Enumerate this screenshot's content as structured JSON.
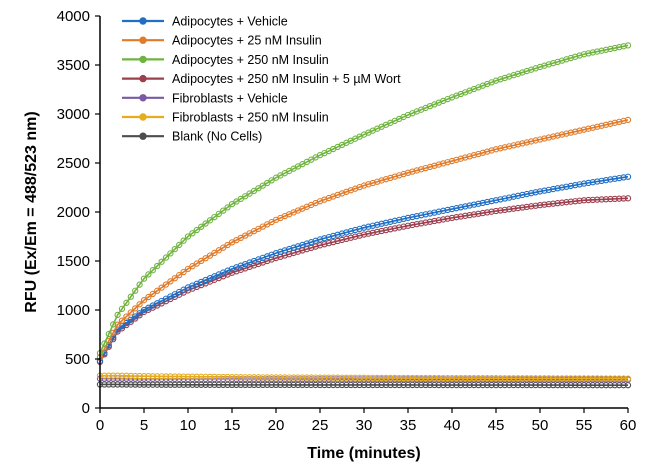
{
  "chart_data": {
    "type": "line",
    "title": "",
    "xlabel": "Time (minutes)",
    "ylabel": "RFU (Ex/Em = 488/523 nm)",
    "xlim": [
      0,
      60
    ],
    "ylim": [
      0,
      4000
    ],
    "xticks": [
      "0",
      "5",
      "10",
      "15",
      "20",
      "25",
      "30",
      "35",
      "40",
      "45",
      "50",
      "55",
      "60"
    ],
    "yticks": [
      "0",
      "500",
      "1000",
      "1500",
      "2000",
      "2500",
      "3000",
      "3500",
      "4000"
    ],
    "grid": false,
    "legend_position": "top-left",
    "x": [
      0,
      2,
      5,
      10,
      15,
      20,
      25,
      30,
      35,
      40,
      45,
      50,
      55,
      60
    ],
    "series": [
      {
        "name": "Adipocytes + Vehicle",
        "color": "#1f6fc4",
        "values": [
          480,
          800,
          1000,
          1230,
          1420,
          1580,
          1720,
          1840,
          1940,
          2030,
          2120,
          2210,
          2290,
          2360
        ]
      },
      {
        "name": "Adipocytes + 25 nM Insulin",
        "color": "#e07b2a",
        "values": [
          520,
          850,
          1100,
          1420,
          1690,
          1920,
          2110,
          2270,
          2400,
          2520,
          2640,
          2740,
          2840,
          2940
        ]
      },
      {
        "name": "Adipocytes + 250 nM Insulin",
        "color": "#6fb43f",
        "values": [
          560,
          950,
          1320,
          1750,
          2080,
          2350,
          2580,
          2790,
          2990,
          3170,
          3340,
          3480,
          3610,
          3700
        ]
      },
      {
        "name": "Adipocytes + 250 nM Insulin + 5 µM Wort",
        "color": "#9c3f4e",
        "values": [
          470,
          780,
          980,
          1200,
          1380,
          1530,
          1660,
          1770,
          1860,
          1940,
          2010,
          2070,
          2120,
          2140
        ]
      },
      {
        "name": "Fibroblasts + Vehicle",
        "color": "#7a5aa6",
        "values": [
          300,
          300,
          298,
          296,
          295,
          294,
          293,
          292,
          292,
          291,
          291,
          290,
          290,
          290
        ]
      },
      {
        "name": "Fibroblasts + 250 nM Insulin",
        "color": "#e6ac1e",
        "values": [
          330,
          330,
          325,
          320,
          315,
          312,
          310,
          308,
          306,
          305,
          304,
          303,
          302,
          300
        ]
      },
      {
        "name": "Blank (No Cells)",
        "color": "#4d4d4d",
        "values": [
          240,
          240,
          238,
          237,
          236,
          236,
          235,
          235,
          235,
          234,
          234,
          234,
          233,
          233
        ]
      }
    ]
  }
}
